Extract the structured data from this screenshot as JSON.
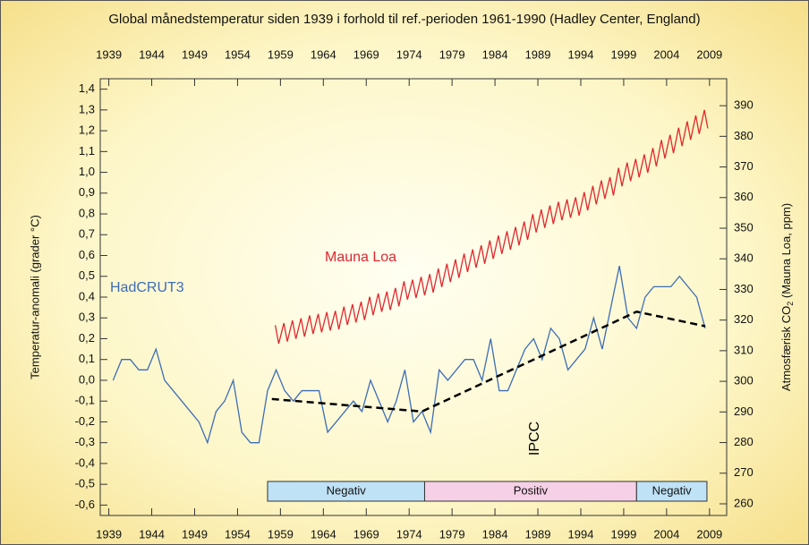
{
  "chart_data": {
    "type": "line",
    "title": "Global månedstemperatur siden 1939 i forhold til ref.-perioden 1961-1990 (Hadley Center, England)",
    "ylabel": "Temperatur-anomali (grader °C)",
    "y2label": [
      "Atmosfærisk CO",
      "2",
      " (Mauna Loa, ppm)"
    ],
    "xlim": [
      1938,
      2011
    ],
    "xticks": [
      1939,
      1944,
      1949,
      1954,
      1959,
      1964,
      1969,
      1974,
      1979,
      1984,
      1989,
      1994,
      1999,
      2004,
      2009
    ],
    "ylim": [
      -0.65,
      1.45
    ],
    "yticks": [
      {
        "value": -0.6,
        "label": "-0,6"
      },
      {
        "value": -0.5,
        "label": "-0,5"
      },
      {
        "value": -0.4,
        "label": "-0,4"
      },
      {
        "value": -0.3,
        "label": "-0,3"
      },
      {
        "value": -0.2,
        "label": "-0,2"
      },
      {
        "value": -0.1,
        "label": "-0,1"
      },
      {
        "value": 0,
        "label": "0,0"
      },
      {
        "value": 0.1,
        "label": "0,1"
      },
      {
        "value": 0.2,
        "label": "0,2"
      },
      {
        "value": 0.3,
        "label": "0,3"
      },
      {
        "value": 0.4,
        "label": "0,4"
      },
      {
        "value": 0.5,
        "label": "0,5"
      },
      {
        "value": 0.6,
        "label": "0,6"
      },
      {
        "value": 0.7,
        "label": "0,7"
      },
      {
        "value": 0.8,
        "label": "0,8"
      },
      {
        "value": 0.9,
        "label": "0,9"
      },
      {
        "value": 1.0,
        "label": "1,0"
      },
      {
        "value": 1.1,
        "label": "1,1"
      },
      {
        "value": 1.2,
        "label": "1,2"
      },
      {
        "value": 1.3,
        "label": "1,3"
      },
      {
        "value": 1.4,
        "label": "1,4"
      }
    ],
    "y2lim": [
      256.2,
      398.8
    ],
    "y2ticks": [
      260,
      270,
      280,
      290,
      300,
      310,
      320,
      330,
      340,
      350,
      360,
      370,
      380,
      390
    ],
    "series": [
      {
        "name": "HadCRUT3",
        "color": "#3d6db5",
        "x": [
          1939.5,
          1940.5,
          1941.5,
          1942.5,
          1943.5,
          1944.5,
          1945.5,
          1946.5,
          1947.5,
          1948.5,
          1949.5,
          1950.5,
          1951.5,
          1952.5,
          1953.5,
          1954.5,
          1955.5,
          1956.5,
          1957.5,
          1958.5,
          1959.5,
          1960.5,
          1961.5,
          1962.5,
          1963.5,
          1964.5,
          1965.5,
          1966.5,
          1967.5,
          1968.5,
          1969.5,
          1970.5,
          1971.5,
          1972.5,
          1973.5,
          1974.5,
          1975.5,
          1976.5,
          1977.5,
          1978.5,
          1979.5,
          1980.5,
          1981.5,
          1982.5,
          1983.5,
          1984.5,
          1985.5,
          1986.5,
          1987.5,
          1988.5,
          1989.5,
          1990.5,
          1991.5,
          1992.5,
          1993.5,
          1994.5,
          1995.5,
          1996.5,
          1997.5,
          1998.5,
          1999.5,
          2000.5,
          2001.5,
          2002.5,
          2003.5,
          2004.5,
          2005.5,
          2006.5,
          2007.5,
          2008.5
        ],
        "values": [
          0.0,
          0.1,
          0.1,
          0.05,
          0.05,
          0.15,
          0.0,
          -0.05,
          -0.1,
          -0.15,
          -0.2,
          -0.3,
          -0.15,
          -0.1,
          0.0,
          -0.25,
          -0.3,
          -0.3,
          -0.05,
          0.05,
          -0.05,
          -0.1,
          -0.05,
          -0.05,
          -0.05,
          -0.25,
          -0.2,
          -0.15,
          -0.1,
          -0.15,
          0.0,
          -0.1,
          -0.2,
          -0.1,
          0.05,
          -0.2,
          -0.15,
          -0.25,
          0.05,
          0.0,
          0.05,
          0.1,
          0.1,
          0.0,
          0.2,
          -0.05,
          -0.05,
          0.05,
          0.15,
          0.2,
          0.1,
          0.25,
          0.2,
          0.05,
          0.1,
          0.15,
          0.3,
          0.15,
          0.35,
          0.55,
          0.3,
          0.25,
          0.4,
          0.45,
          0.45,
          0.45,
          0.5,
          0.45,
          0.4,
          0.25
        ]
      },
      {
        "name": "Mauna Loa",
        "color": "#e0282e",
        "axis": "y2",
        "x": [
          1958.4,
          1958.8,
          1959.4,
          1959.8,
          1960.4,
          1960.8,
          1961.4,
          1961.8,
          1962.4,
          1962.8,
          1963.4,
          1963.8,
          1964.4,
          1964.8,
          1965.4,
          1965.8,
          1966.4,
          1966.8,
          1967.4,
          1967.8,
          1968.4,
          1968.8,
          1969.4,
          1969.8,
          1970.4,
          1970.8,
          1971.4,
          1971.8,
          1972.4,
          1972.8,
          1973.4,
          1973.8,
          1974.4,
          1974.8,
          1975.4,
          1975.8,
          1976.4,
          1976.8,
          1977.4,
          1977.8,
          1978.4,
          1978.8,
          1979.4,
          1979.8,
          1980.4,
          1980.8,
          1981.4,
          1981.8,
          1982.4,
          1982.8,
          1983.4,
          1983.8,
          1984.4,
          1984.8,
          1985.4,
          1985.8,
          1986.4,
          1986.8,
          1987.4,
          1987.8,
          1988.4,
          1988.8,
          1989.4,
          1989.8,
          1990.4,
          1990.8,
          1991.4,
          1991.8,
          1992.4,
          1992.8,
          1993.4,
          1993.8,
          1994.4,
          1994.8,
          1995.4,
          1995.8,
          1996.4,
          1996.8,
          1997.4,
          1997.8,
          1998.4,
          1998.8,
          1999.4,
          1999.8,
          2000.4,
          2000.8,
          2001.4,
          2001.8,
          2002.4,
          2002.8,
          2003.4,
          2003.8,
          2004.4,
          2004.8,
          2005.4,
          2005.8,
          2006.4,
          2006.8,
          2007.4,
          2007.8,
          2008.4,
          2008.8
        ],
        "values": [
          318.3,
          312.3,
          319,
          313,
          319.9,
          313.9,
          320.6,
          314.6,
          321.5,
          315.5,
          322,
          316,
          322.6,
          316.6,
          323,
          317,
          324.4,
          318.4,
          325.2,
          319.2,
          326,
          320,
          327.6,
          321.6,
          328.7,
          322.7,
          329.3,
          323.3,
          330.5,
          324.5,
          332.7,
          326.7,
          333.2,
          327.2,
          334.1,
          328.1,
          335,
          329,
          336.8,
          330.8,
          338.4,
          332.4,
          339.8,
          333.8,
          341.7,
          335.7,
          343.1,
          337.1,
          344.4,
          338.4,
          346,
          340,
          347.6,
          341.6,
          349,
          343,
          350.4,
          344.4,
          352.2,
          346.2,
          354.6,
          348.6,
          356.1,
          350.1,
          357.4,
          351.4,
          358.6,
          352.6,
          359.4,
          353.4,
          360.1,
          354.1,
          361.8,
          355.8,
          363.8,
          357.8,
          365.6,
          359.6,
          366.7,
          360.7,
          369.7,
          363.7,
          371.4,
          365.4,
          372.6,
          366.6,
          374.1,
          368.1,
          376.2,
          370.2,
          378.8,
          372.8,
          380.5,
          374.5,
          382.8,
          376.8,
          384.9,
          378.9,
          386.8,
          380.8,
          388.6,
          382.6
        ]
      },
      {
        "name": "IPCC",
        "color": "#000000",
        "dashed": true,
        "x": [
          1958,
          1975.5,
          2000.5,
          2008.5
        ],
        "values": [
          -0.09,
          -0.15,
          0.33,
          0.26
        ]
      }
    ],
    "phases": [
      {
        "label": "Negativ",
        "start": 1957.5,
        "end": 1975.8,
        "color": "#bfe2f6"
      },
      {
        "label": "Positiv",
        "start": 1975.8,
        "end": 2000.5,
        "color": "#f6d0e6"
      },
      {
        "label": "Negativ",
        "start": 2000.5,
        "end": 2008.7,
        "color": "#bfe2f6"
      }
    ]
  }
}
